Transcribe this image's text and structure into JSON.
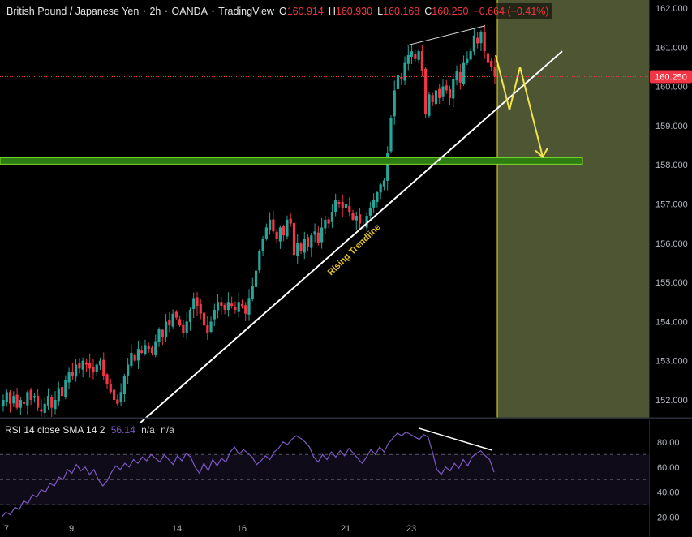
{
  "header": {
    "symbol": "British Pound / Japanese Yen",
    "interval": "2h",
    "broker": "OANDA",
    "platform": "TradingView",
    "open_label": "O",
    "open": "160.914",
    "high_label": "H",
    "high": "160.930",
    "low_label": "L",
    "low": "160.168",
    "close_label": "C",
    "close": "160.250",
    "change": "−0.664 (−0.41%)"
  },
  "rsi_legend": {
    "label": "RSI 14 close SMA 14 2",
    "value": "56.14",
    "na1": "n/a",
    "na2": "n/a"
  },
  "price_badge": "160.250",
  "colors": {
    "up": "#26a69a",
    "down": "#f23645",
    "zone": "#4e5532",
    "support": "#2e7d12",
    "support_border": "#7cdc2c",
    "arrow": "#f0e54c",
    "rsi": "#7e57c2",
    "label": "#e0c020"
  },
  "chart_data": [
    {
      "type": "candlestick",
      "title": "British Pound / Japanese Yen · 2h · OANDA",
      "ylim": [
        151.6,
        162.2
      ],
      "y_ticks": [
        "162.000",
        "161.000",
        "160.000",
        "159.000",
        "158.000",
        "157.000",
        "156.000",
        "155.000",
        "154.000",
        "153.000",
        "152.000"
      ],
      "x_ticks": [
        "7",
        "9",
        "14",
        "16",
        "21",
        "23"
      ],
      "current_price": 160.25,
      "support_level": 158.1,
      "trendline_label": "Rising Trendline",
      "trendline": [
        [
          0.0,
          151.3
        ],
        [
          1.0,
          160.45
        ]
      ],
      "forecast_path": [
        160.8,
        159.4,
        160.5,
        158.2
      ],
      "closes": [
        152.0,
        152.2,
        151.9,
        152.1,
        151.8,
        152.0,
        151.9,
        152.2,
        152.0,
        152.1,
        151.8,
        151.7,
        151.9,
        152.1,
        151.8,
        152.0,
        152.3,
        152.1,
        152.5,
        152.7,
        152.6,
        152.9,
        152.8,
        153.0,
        152.9,
        152.8,
        152.7,
        152.9,
        153.0,
        152.6,
        152.4,
        152.2,
        152.0,
        151.9,
        152.2,
        152.6,
        152.9,
        153.2,
        153.0,
        153.3,
        153.2,
        153.4,
        153.3,
        153.2,
        153.5,
        153.8,
        153.6,
        154.0,
        153.9,
        154.2,
        154.1,
        153.9,
        153.7,
        154.0,
        154.3,
        154.6,
        154.4,
        154.2,
        153.9,
        153.7,
        154.0,
        154.3,
        154.5,
        154.4,
        154.3,
        154.5,
        154.4,
        154.3,
        154.5,
        154.4,
        154.2,
        154.6,
        154.9,
        155.3,
        155.8,
        156.1,
        156.4,
        156.6,
        156.3,
        156.1,
        156.4,
        156.2,
        156.6,
        156.5,
        155.7,
        156.0,
        155.8,
        156.1,
        155.9,
        156.2,
        156.3,
        156.0,
        156.4,
        156.6,
        156.5,
        156.8,
        157.1,
        157.0,
        156.9,
        157.0,
        156.8,
        156.6,
        156.7,
        156.5,
        156.4,
        156.7,
        156.9,
        157.1,
        157.3,
        157.5,
        157.6,
        158.3,
        159.2,
        159.9,
        160.3,
        160.2,
        160.6,
        160.8,
        160.9,
        160.7,
        160.9,
        160.4,
        159.3,
        159.8,
        159.6,
        159.9,
        159.7,
        160.0,
        159.9,
        159.7,
        160.2,
        160.4,
        160.1,
        160.6,
        160.7,
        160.9,
        161.3,
        161.1,
        161.4,
        160.9,
        160.6,
        160.5,
        160.25
      ],
      "y_axis_side": "right"
    },
    {
      "type": "line",
      "title": "RSI 14 close SMA 14 2",
      "ylim": [
        12,
        98
      ],
      "y_ticks": [
        "80.00",
        "60.00",
        "40.00",
        "20.00"
      ],
      "bands": [
        70,
        50,
        30
      ],
      "series": [
        {
          "name": "RSI",
          "values": [
            20,
            24,
            22,
            28,
            26,
            33,
            31,
            38,
            36,
            42,
            40,
            47,
            45,
            52,
            50,
            58,
            55,
            62,
            57,
            60,
            54,
            58,
            50,
            45,
            49,
            56,
            61,
            58,
            63,
            60,
            66,
            63,
            68,
            65,
            70,
            67,
            64,
            70,
            66,
            62,
            69,
            65,
            71,
            68,
            60,
            55,
            63,
            57,
            66,
            61,
            67,
            64,
            72,
            76,
            70,
            74,
            71,
            68,
            62,
            65,
            69,
            66,
            72,
            75,
            80,
            78,
            82,
            85,
            83,
            80,
            76,
            68,
            64,
            70,
            66,
            72,
            68,
            73,
            69,
            75,
            71,
            67,
            63,
            68,
            74,
            70,
            76,
            72,
            79,
            83,
            87,
            85,
            88,
            86,
            84,
            82,
            86,
            84,
            72,
            58,
            54,
            60,
            57,
            63,
            59,
            66,
            61,
            68,
            71,
            73,
            69,
            66,
            56
          ]
        }
      ]
    }
  ]
}
